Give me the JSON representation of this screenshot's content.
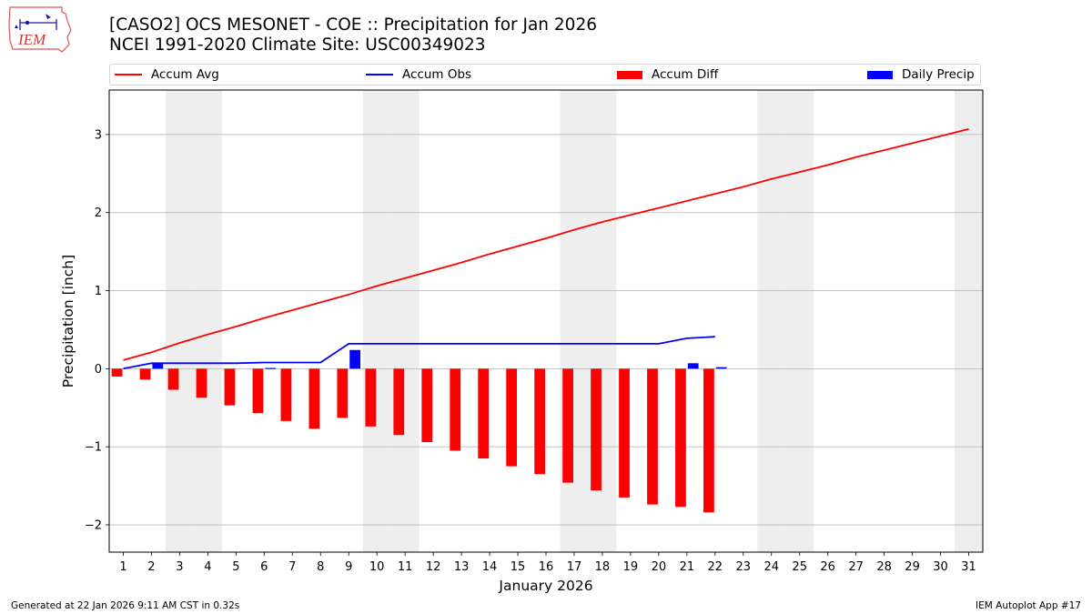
{
  "header": {
    "title_line1": "[CASO2] OCS MESONET - COE :: Precipitation for Jan 2026",
    "title_line2": "NCEI 1991-2020 Climate Site: USC00349023"
  },
  "logo": {
    "text": "IEM"
  },
  "legend": {
    "accum_avg": "Accum Avg",
    "accum_obs": "Accum Obs",
    "accum_diff": "Accum Diff",
    "daily_precip": "Daily Precip"
  },
  "colors": {
    "avg": "#ff0000",
    "obs": "#0000ff",
    "diff": "#ff0000",
    "precip": "#0000ff",
    "weekend": "#eeeeee",
    "grid": "#b0b0b0"
  },
  "footer": {
    "left": "Generated at 22 Jan 2026 9:11 AM CST in 0.32s",
    "right": "IEM Autoplot App #17"
  },
  "chart_data": {
    "type": "bar",
    "title": "[CASO2] OCS MESONET - COE :: Precipitation for Jan 2026",
    "subtitle": "NCEI 1991-2020 Climate Site: USC00349023",
    "xlabel": "January 2026",
    "ylabel": "Precipitation [inch]",
    "categories": [
      "1",
      "2",
      "3",
      "4",
      "5",
      "6",
      "7",
      "8",
      "9",
      "10",
      "11",
      "12",
      "13",
      "14",
      "15",
      "16",
      "17",
      "18",
      "19",
      "20",
      "21",
      "22",
      "23",
      "24",
      "25",
      "26",
      "27",
      "28",
      "29",
      "30",
      "31"
    ],
    "ylim": [
      -2.35,
      3.57
    ],
    "yticks": [
      -2,
      -1,
      0,
      1,
      2,
      3
    ],
    "ytick_labels": [
      "−2",
      "−1",
      "0",
      "1",
      "2",
      "3"
    ],
    "weekend_days": [
      3,
      4,
      10,
      11,
      17,
      18,
      24,
      25,
      31
    ],
    "grid": "horizontal",
    "legend_position": "top",
    "series": [
      {
        "name": "Accum Avg",
        "type": "line",
        "color": "#ff0000",
        "x": [
          1,
          2,
          3,
          4,
          5,
          6,
          7,
          8,
          9,
          10,
          11,
          12,
          13,
          14,
          15,
          16,
          17,
          18,
          19,
          20,
          21,
          22,
          23,
          24,
          25,
          26,
          27,
          28,
          29,
          30,
          31
        ],
        "values": [
          0.11,
          0.21,
          0.33,
          0.44,
          0.54,
          0.65,
          0.75,
          0.85,
          0.95,
          1.06,
          1.16,
          1.26,
          1.36,
          1.47,
          1.57,
          1.67,
          1.78,
          1.88,
          1.97,
          2.06,
          2.15,
          2.24,
          2.33,
          2.43,
          2.52,
          2.61,
          2.71,
          2.8,
          2.89,
          2.98,
          3.07
        ]
      },
      {
        "name": "Accum Obs",
        "type": "line",
        "color": "#0000ff",
        "x": [
          1,
          2,
          3,
          4,
          5,
          6,
          7,
          8,
          9,
          10,
          11,
          12,
          13,
          14,
          15,
          16,
          17,
          18,
          19,
          20,
          21,
          22
        ],
        "values": [
          0.0,
          0.07,
          0.07,
          0.07,
          0.07,
          0.08,
          0.08,
          0.08,
          0.32,
          0.32,
          0.32,
          0.32,
          0.32,
          0.32,
          0.32,
          0.32,
          0.32,
          0.32,
          0.32,
          0.32,
          0.39,
          0.41
        ]
      },
      {
        "name": "Accum Diff",
        "type": "bar",
        "color": "#ff0000",
        "x": [
          1,
          2,
          3,
          4,
          5,
          6,
          7,
          8,
          9,
          10,
          11,
          12,
          13,
          14,
          15,
          16,
          17,
          18,
          19,
          20,
          21,
          22
        ],
        "values": [
          -0.1,
          -0.14,
          -0.27,
          -0.37,
          -0.47,
          -0.57,
          -0.67,
          -0.77,
          -0.63,
          -0.74,
          -0.85,
          -0.94,
          -1.05,
          -1.15,
          -1.25,
          -1.35,
          -1.46,
          -1.56,
          -1.65,
          -1.74,
          -1.77,
          -1.84
        ]
      },
      {
        "name": "Daily Precip",
        "type": "bar",
        "color": "#0000ff",
        "x": [
          1,
          2,
          3,
          4,
          5,
          6,
          7,
          8,
          9,
          10,
          11,
          12,
          13,
          14,
          15,
          16,
          17,
          18,
          19,
          20,
          21,
          22
        ],
        "values": [
          0.0,
          0.07,
          0.0,
          0.0,
          0.0,
          0.01,
          0.0,
          0.0,
          0.24,
          0.0,
          0.0,
          0.0,
          0.0,
          0.0,
          0.0,
          0.0,
          0.0,
          0.0,
          0.0,
          0.0,
          0.07,
          0.02
        ]
      }
    ]
  }
}
